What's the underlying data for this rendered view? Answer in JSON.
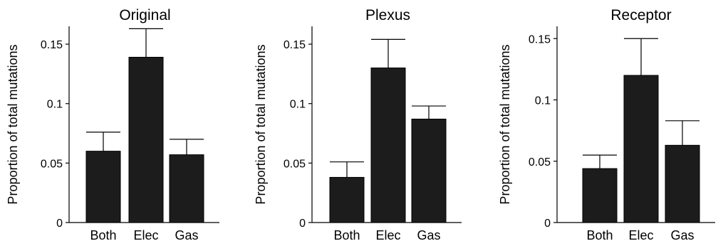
{
  "chart_data": [
    {
      "type": "bar",
      "title": "Original",
      "ylabel": "Proportion of total mutations",
      "xlabel": "",
      "categories": [
        "Both",
        "Elec",
        "Gas"
      ],
      "values": [
        0.06,
        0.139,
        0.057
      ],
      "error_upper": [
        0.076,
        0.163,
        0.07
      ],
      "ylim": [
        0,
        0.165
      ],
      "yticks": [
        0,
        0.05,
        0.1,
        0.15
      ],
      "ytick_labels": [
        "0",
        "0.05",
        "0.1",
        "0.15"
      ],
      "grid": false,
      "bar_color": "#1c1c1c"
    },
    {
      "type": "bar",
      "title": "Plexus",
      "ylabel": "Proportion of total mutations",
      "xlabel": "",
      "categories": [
        "Both",
        "Elec",
        "Gas"
      ],
      "values": [
        0.038,
        0.13,
        0.087
      ],
      "error_upper": [
        0.051,
        0.154,
        0.098
      ],
      "ylim": [
        0,
        0.165
      ],
      "yticks": [
        0,
        0.05,
        0.1,
        0.15
      ],
      "ytick_labels": [
        "0",
        "0.05",
        "0.1",
        "0.15"
      ],
      "grid": false,
      "bar_color": "#1c1c1c"
    },
    {
      "type": "bar",
      "title": "Receptor",
      "ylabel": "Proportion of total mutations",
      "xlabel": "",
      "categories": [
        "Both",
        "Elec",
        "Gas"
      ],
      "values": [
        0.044,
        0.12,
        0.063
      ],
      "error_upper": [
        0.055,
        0.15,
        0.083
      ],
      "ylim": [
        0,
        0.16
      ],
      "yticks": [
        0,
        0.05,
        0.1,
        0.15
      ],
      "ytick_labels": [
        "0",
        "0.05",
        "0.1",
        "0.15"
      ],
      "grid": false,
      "bar_color": "#1c1c1c"
    }
  ]
}
